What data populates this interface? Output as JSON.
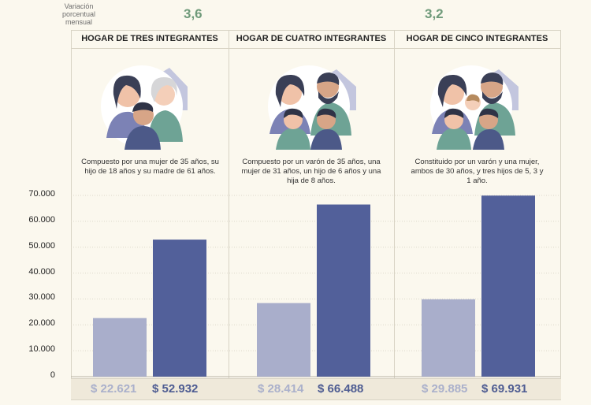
{
  "header": {
    "variation_label": "Variación porcentual mensual",
    "variation_values": [
      "3,6",
      "3,2"
    ]
  },
  "households": [
    {
      "title": "HOGAR DE TRES INTEGRANTES",
      "description": "Compuesto por una mujer de 35 años, su hijo de 18 años y su madre de 61 años.",
      "low_label": "$ 22.621",
      "high_label": "$ 52.932"
    },
    {
      "title": "HOGAR DE CUATRO INTEGRANTES",
      "description": "Compuesto por un varón de 35 años, una mujer de 31 años, un hijo de 6 años y una hija de 8 años.",
      "low_label": "$ 28.414",
      "high_label": "$ 66.488"
    },
    {
      "title": "HOGAR DE CINCO INTEGRANTES",
      "description": "Constituido por un varón y una mujer, ambos de 30 años, y tres hijos de 5, 3 y 1 año.",
      "low_label": "$ 29.885",
      "high_label": "$ 69.931"
    }
  ],
  "colors": {
    "bar_light": "#a9aecb",
    "bar_dark": "#52609a",
    "accent_green": "#6f9a7a"
  },
  "chart_data": {
    "type": "bar",
    "categories": [
      "HOGAR DE TRES INTEGRANTES",
      "HOGAR DE CUATRO INTEGRANTES",
      "HOGAR DE CINCO INTEGRANTES"
    ],
    "series": [
      {
        "name": "light",
        "values": [
          22621,
          28414,
          29885
        ]
      },
      {
        "name": "dark",
        "values": [
          52932,
          66488,
          69931
        ]
      }
    ],
    "ylim": [
      0,
      70000
    ],
    "yticks": [
      "0",
      "10.000",
      "20.000",
      "30.000",
      "40.000",
      "50.000",
      "60.000",
      "70.000"
    ],
    "ytick_values": [
      0,
      10000,
      20000,
      30000,
      40000,
      50000,
      60000,
      70000
    ],
    "grid": true
  }
}
